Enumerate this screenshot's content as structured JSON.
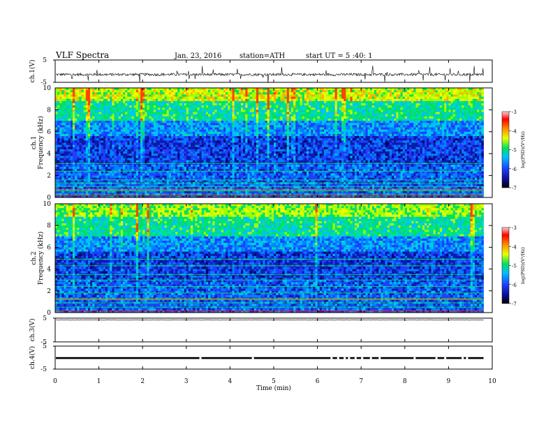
{
  "header": {
    "title": "VLF  Spectra",
    "date": "Jan. 23, 2016",
    "station": "station=ATH",
    "start": "start  UT  =   5  :40: 1"
  },
  "chart_data": [
    {
      "type": "line",
      "panel": "ch1-waveform",
      "ylabel": "ch.1(V)",
      "yticks": [
        "5",
        "-5"
      ],
      "ylim": [
        -5,
        5
      ],
      "xlim": [
        0,
        10
      ],
      "baseline": -1.5,
      "noise_amplitude": 1.2,
      "series_end": 9.8
    },
    {
      "type": "heatmap",
      "panel": "ch1-spectrogram",
      "ylabel": [
        "ch.1",
        "Frequency  (kHz)"
      ],
      "yticks": [
        "0",
        "2",
        "4",
        "6",
        "8",
        "10"
      ],
      "ylim": [
        0,
        10
      ],
      "xlim": [
        0,
        10
      ],
      "series_end": 9.8,
      "colorbar": {
        "label": "log(PSD)(V²/Hz)",
        "ticks": [
          "-3",
          "-4",
          "-5",
          "-6",
          "-7"
        ],
        "range": [
          -7,
          -3
        ]
      }
    },
    {
      "type": "heatmap",
      "panel": "ch2-spectrogram",
      "ylabel": [
        "ch.2",
        "Frequency  (kHz)"
      ],
      "yticks": [
        "0",
        "2",
        "4",
        "6",
        "8",
        "10"
      ],
      "ylim": [
        0,
        10
      ],
      "xlim": [
        0,
        10
      ],
      "series_end": 9.8,
      "colorbar": {
        "label": "log(PSD)(V²/Hz)",
        "ticks": [
          "-3",
          "-4",
          "-5",
          "-6",
          "-7"
        ],
        "range": [
          -7,
          -3
        ]
      }
    },
    {
      "type": "line",
      "panel": "ch3-waveform",
      "ylabel": "ch.3(V)",
      "yticks": [
        "5",
        "-5"
      ],
      "ylim": [
        -5,
        5
      ],
      "xlim": [
        0,
        10
      ],
      "baseline": 4.2,
      "noise_amplitude": 0.1,
      "series_end": 9.8
    },
    {
      "type": "line",
      "panel": "ch4-waveform",
      "ylabel": "ch.4(V)",
      "yticks": [
        "5",
        "-5"
      ],
      "ylim": [
        -5,
        5
      ],
      "xlim": [
        0,
        10
      ],
      "baseline": -0.2,
      "band_height": 0.8,
      "gaps": [
        3.3,
        4.5,
        6.3,
        6.45,
        6.6,
        6.7,
        6.85,
        7.0,
        7.2,
        7.4,
        8.2,
        8.7,
        8.9,
        9.3,
        9.4
      ],
      "series_end": 9.8,
      "xlabel": "Time  (min)",
      "xticks": [
        "0",
        "1",
        "2",
        "3",
        "4",
        "5",
        "6",
        "7",
        "8",
        "9",
        "10"
      ]
    }
  ]
}
